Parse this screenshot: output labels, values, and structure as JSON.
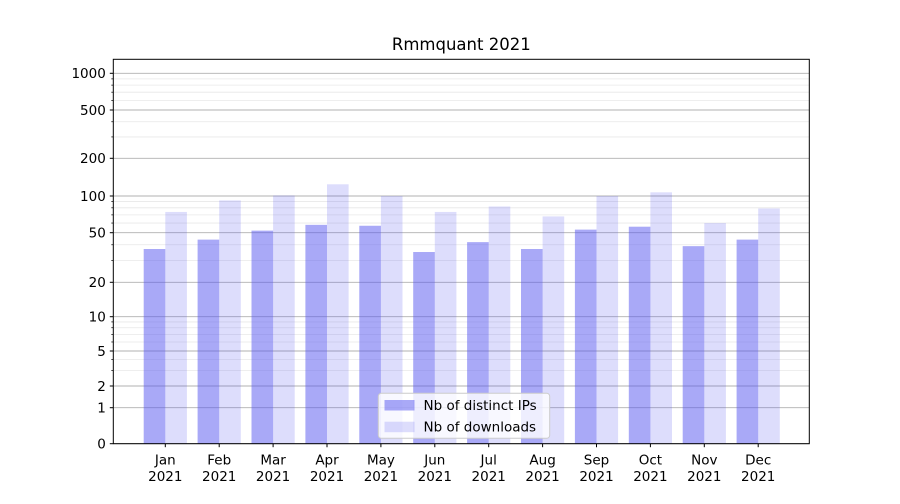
{
  "title": "Rmmquant 2021",
  "chart_data": {
    "type": "bar",
    "title": "Rmmquant 2021",
    "categories": [
      "Jan 2021",
      "Feb 2021",
      "Mar 2021",
      "Apr 2021",
      "May 2021",
      "Jun 2021",
      "Jul 2021",
      "Aug 2021",
      "Sep 2021",
      "Oct 2021",
      "Nov 2021",
      "Dec 2021"
    ],
    "series": [
      {
        "name": "Nb of distinct IPs",
        "color": "#a9a9f6",
        "values": [
          37,
          44,
          52,
          58,
          57,
          35,
          42,
          37,
          53,
          56,
          39,
          44
        ]
      },
      {
        "name": "Nb of downloads",
        "color": "#dcdcf9",
        "values": [
          74,
          92,
          101,
          124,
          100,
          74,
          82,
          68,
          100,
          107,
          60,
          79
        ]
      }
    ],
    "yscale": "symlog",
    "yticks": [
      0,
      1,
      2,
      5,
      10,
      20,
      50,
      100,
      200,
      500,
      1000
    ],
    "ytick_labels": [
      "0",
      "1",
      "2",
      "5",
      "10",
      "20",
      "50",
      "100",
      "200",
      "500",
      "1000"
    ],
    "ylim": [
      0,
      1300
    ],
    "xlabel": "",
    "ylabel": "",
    "grid": "both",
    "legend_position": "lower center"
  },
  "legend": {
    "items": [
      {
        "label": "Nb of distinct IPs"
      },
      {
        "label": "Nb of downloads"
      }
    ]
  },
  "colors": {
    "bar_base": "#5353ef",
    "ips_fill_opacity": "0.5",
    "downloads_fill_opacity": "0.2",
    "ips_visible": "#a9a9f6",
    "downloads_visible": "#dcdcf9",
    "major_grid": "#b0b0b0",
    "minor_grid": "#e8e8e8",
    "axis": "#000000",
    "legend_border": "#cccccc",
    "legend_bg": "#ffffff"
  }
}
